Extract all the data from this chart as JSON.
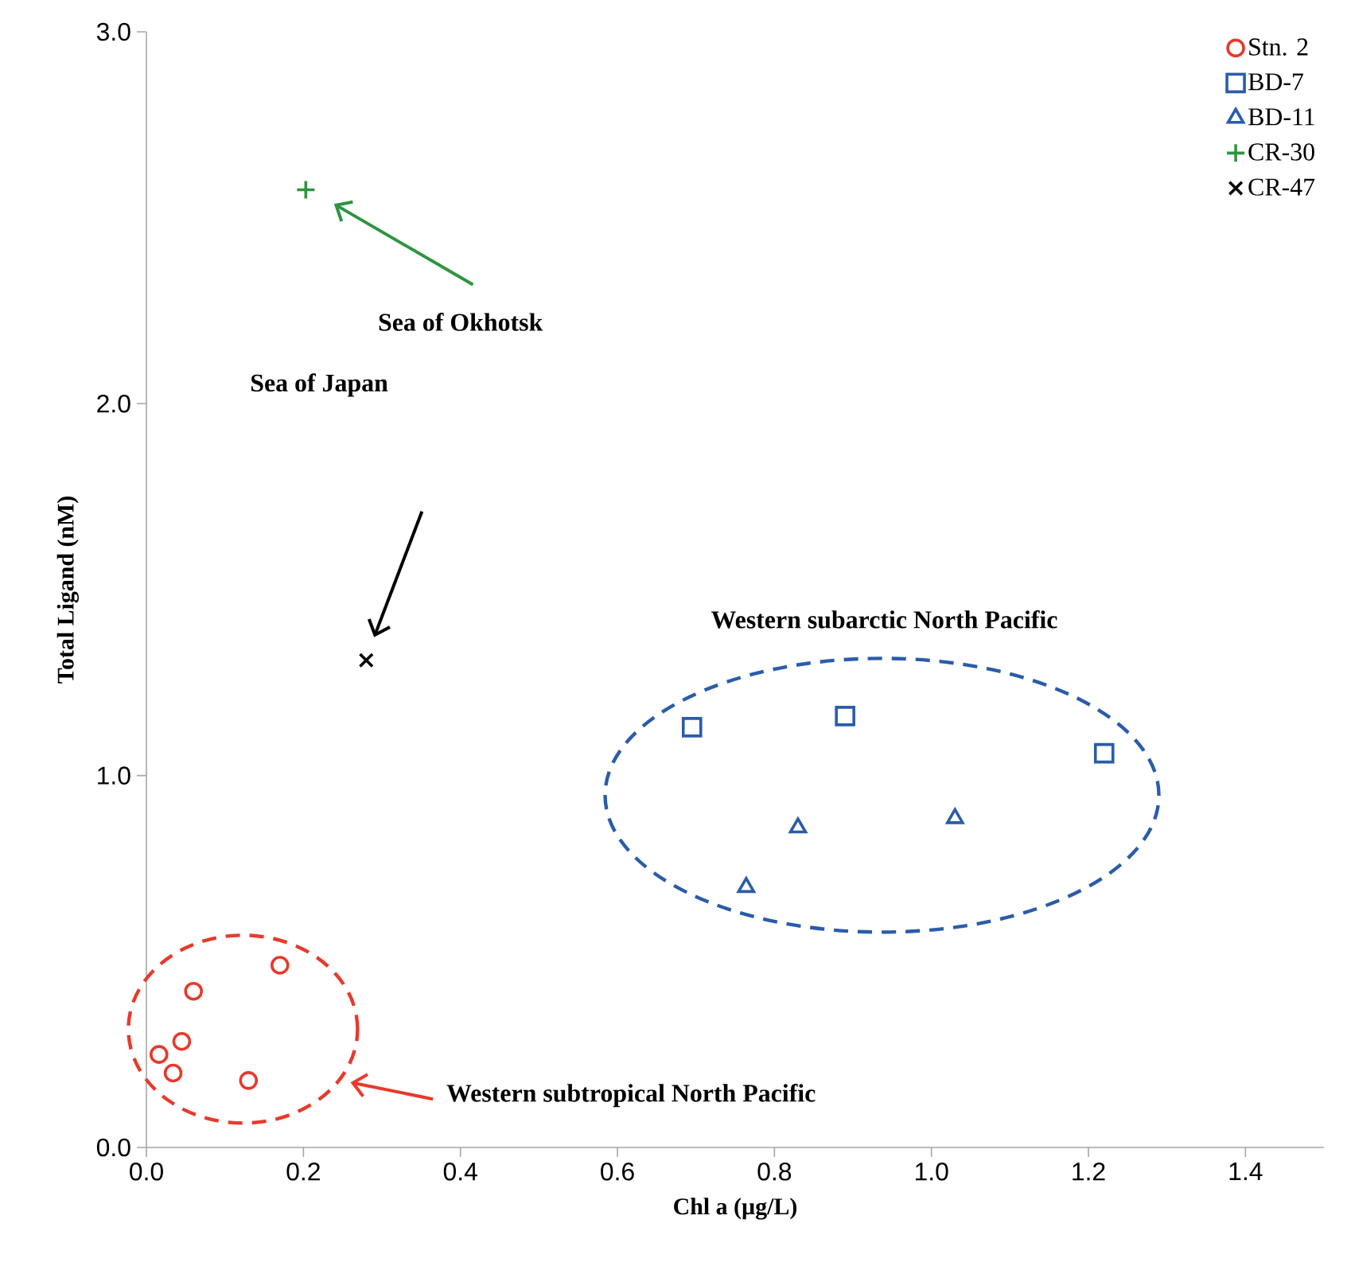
{
  "chart_data": {
    "type": "scatter",
    "xlabel": "Chl a (µg/L)",
    "ylabel": "Total Ligand (nM)",
    "xlim": [
      0,
      1.5
    ],
    "ylim": [
      0,
      3.0
    ],
    "xticks": [
      {
        "value": 0,
        "label": "0.0"
      },
      {
        "value": 0.2,
        "label": "0.2"
      },
      {
        "value": 0.4,
        "label": "0.4"
      },
      {
        "value": 0.6,
        "label": "0.6"
      },
      {
        "value": 0.8,
        "label": "0.8"
      },
      {
        "value": 1.0,
        "label": "1.0"
      },
      {
        "value": 1.2,
        "label": "1.2"
      },
      {
        "value": 1.4,
        "label": "1.4"
      }
    ],
    "yticks": [
      {
        "value": 0,
        "label": "0.0"
      },
      {
        "value": 1.0,
        "label": "1.0"
      },
      {
        "value": 2.0,
        "label": "2.0"
      },
      {
        "value": 3.0,
        "label": "3.0"
      }
    ],
    "grid": false,
    "legend": "top right",
    "series": [
      {
        "name": "Stn. 2",
        "color": "#e8392b",
        "marker": "circle",
        "x": [
          0.016,
          0.045,
          0.034,
          0.06,
          0.17,
          0.13
        ],
        "values": [
          0.25,
          0.285,
          0.2,
          0.42,
          0.49,
          0.18
        ]
      },
      {
        "name": "BD-7",
        "color": "#2a5caa",
        "marker": "square",
        "x": [
          0.695,
          0.89,
          1.22
        ],
        "values": [
          1.13,
          1.16,
          1.06
        ]
      },
      {
        "name": "BD-11",
        "color": "#2a5caa",
        "marker": "triangle",
        "x": [
          0.764,
          0.83,
          1.03
        ],
        "values": [
          0.7,
          0.86,
          0.885
        ]
      },
      {
        "name": "CR-30",
        "color": "#2e9440",
        "marker": "plus",
        "x": [
          0.203
        ],
        "values": [
          2.575
        ]
      },
      {
        "name": "CR-47",
        "color": "#000000",
        "marker": "cross",
        "x": [
          0.28
        ],
        "values": [
          1.31
        ]
      }
    ],
    "annotations": [
      "Sea of Okhotsk",
      "Sea of Japan",
      "Western subarctic North Pacific",
      "Western subtropical North Pacific"
    ]
  }
}
